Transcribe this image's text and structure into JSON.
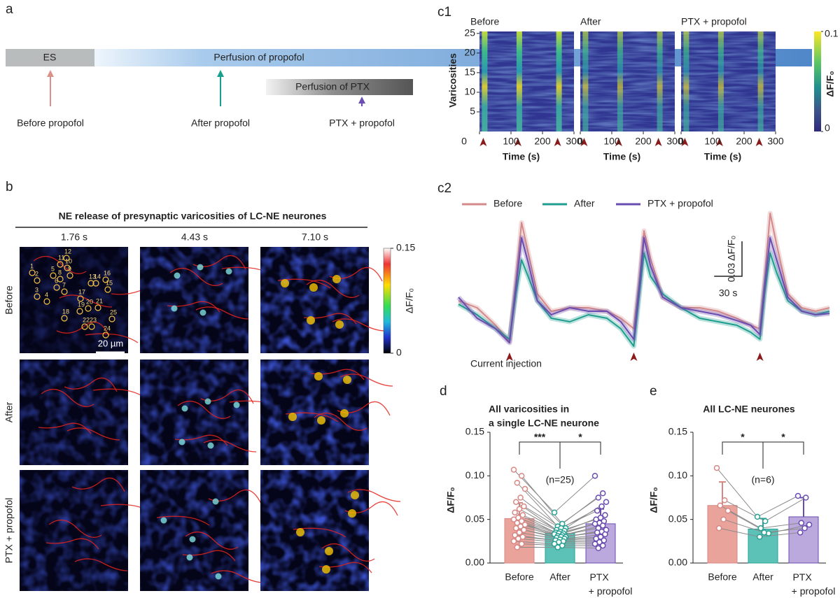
{
  "panel_a": {
    "label": "a",
    "es": "ES",
    "perfusion_propofol": "Perfusion of propofol",
    "perfusion_ptx": "Perfusion of PTX",
    "arrow_labels": [
      "Before propofol",
      "After propofol",
      "PTX + propofol"
    ]
  },
  "panel_b": {
    "label": "b",
    "title": "NE release of presynaptic varicosities of LC-NE neurones",
    "times": [
      "1.76 s",
      "4.43 s",
      "7.10 s"
    ],
    "rows": [
      "Before",
      "After",
      "PTX + propofol"
    ],
    "scale_bar": "20 µm",
    "roi_labels": [
      "1",
      "2",
      "3",
      "4",
      "5",
      "6",
      "7",
      "8",
      "9",
      "10",
      "11",
      "12",
      "13",
      "14",
      "15",
      "16",
      "17",
      "18",
      "19",
      "20",
      "21",
      "22",
      "23",
      "24",
      "25"
    ],
    "colorbar": {
      "label": "ΔF/F₀",
      "ticks": [
        0,
        0.15
      ]
    }
  },
  "panel_c1": {
    "label": "c1",
    "titles": [
      "Before",
      "After",
      "PTX + propofol"
    ],
    "ylabel": "Varicosities",
    "xlabel": "Time (s)",
    "xlim": [
      0,
      300
    ],
    "xticks": [
      0,
      100,
      200,
      300
    ],
    "ylim": [
      0,
      25.5
    ],
    "yticks": [
      5,
      10,
      15,
      20,
      25
    ],
    "markers": [
      12,
      122,
      248
    ],
    "colorbar": {
      "label": "ΔF/F₀",
      "ticks": [
        0,
        0.1
      ]
    }
  },
  "chart_data": [
    {
      "type": "line",
      "label": "c2",
      "annotation": "Current injection",
      "x": [
        0,
        20,
        40,
        55,
        62,
        68,
        75,
        85,
        100,
        120,
        140,
        160,
        175,
        189,
        195,
        200,
        207,
        220,
        240,
        260,
        280,
        300,
        315,
        325,
        330,
        336,
        343,
        355,
        370,
        385,
        400
      ],
      "xlim": [
        0,
        400
      ],
      "ylim": [
        -0.033,
        0.093
      ],
      "markers": [
        55,
        189,
        325
      ],
      "scale_y": {
        "value": 0.03,
        "label": "0.03 ΔF/F₀"
      },
      "scale_x": {
        "value": 30,
        "label": "30 s"
      },
      "series": [
        {
          "name": "Before",
          "color": "#d48a8a",
          "values": [
            0.009,
            0.003,
            -0.012,
            -0.026,
            0.027,
            0.076,
            0.051,
            0.015,
            0,
            0.003,
            0.003,
            0,
            -0.006,
            -0.015,
            0.027,
            0.069,
            0.045,
            0.012,
            0.003,
            0.003,
            0,
            -0.006,
            -0.012,
            -0.015,
            0.027,
            0.084,
            0.057,
            0.015,
            0.003,
            0,
            0.003
          ]
        },
        {
          "name": "After",
          "color": "#1f9e90",
          "values": [
            0.006,
            -0.003,
            -0.015,
            -0.024,
            0.015,
            0.044,
            0.03,
            0.009,
            -0.006,
            -0.009,
            -0.003,
            -0.006,
            -0.015,
            -0.03,
            0.015,
            0.05,
            0.03,
            0.015,
            0.003,
            -0.006,
            -0.009,
            -0.012,
            -0.018,
            -0.024,
            0.015,
            0.05,
            0.033,
            0.009,
            0,
            -0.003,
            0
          ]
        },
        {
          "name": "PTX + propofol",
          "color": "#6a4cb0",
          "values": [
            0.012,
            -0.006,
            -0.015,
            -0.027,
            0.021,
            0.063,
            0.042,
            0.009,
            -0.003,
            0.003,
            0,
            0,
            -0.009,
            -0.024,
            0.021,
            0.063,
            0.039,
            0.012,
            0.003,
            0,
            -0.003,
            -0.008,
            -0.012,
            -0.02,
            0.021,
            0.063,
            0.044,
            0.012,
            0,
            -0.003,
            -0.002
          ]
        }
      ]
    },
    {
      "type": "bar",
      "label": "d",
      "title_lines": [
        "All varicosities in",
        "a single LC-NE neurone"
      ],
      "ylabel": "ΔF/F₀",
      "categories": [
        "Before",
        "After",
        "PTX + propofol"
      ],
      "colors": [
        "#e9a39b",
        "#5cc2b8",
        "#bba9dd"
      ],
      "point_colors": [
        "#d88884",
        "#26a194",
        "#6a4cb0"
      ],
      "values": [
        0.051,
        0.034,
        0.045
      ],
      "errors": [
        0.018,
        0.008,
        0.017
      ],
      "points": [
        [
          0.107,
          0.1,
          0.092,
          0.085,
          0.075,
          0.07,
          0.065,
          0.062,
          0.058,
          0.055,
          0.052,
          0.05,
          0.048,
          0.046,
          0.044,
          0.042,
          0.04,
          0.038,
          0.035,
          0.032,
          0.03,
          0.028,
          0.025,
          0.022,
          0.018
        ],
        [
          0.058,
          0.045,
          0.042,
          0.04,
          0.04,
          0.038,
          0.037,
          0.036,
          0.035,
          0.034,
          0.034,
          0.033,
          0.032,
          0.031,
          0.03,
          0.03,
          0.029,
          0.028,
          0.027,
          0.026,
          0.025,
          0.024,
          0.022,
          0.02,
          0.018
        ],
        [
          0.1,
          0.08,
          0.075,
          0.07,
          0.065,
          0.06,
          0.055,
          0.052,
          0.05,
          0.048,
          0.046,
          0.045,
          0.043,
          0.04,
          0.038,
          0.036,
          0.035,
          0.033,
          0.03,
          0.028,
          0.026,
          0.024,
          0.022,
          0.02,
          0.017
        ]
      ],
      "significance": [
        "***",
        "*"
      ],
      "n_label": "(n=25)",
      "ylim": [
        0,
        0.15
      ],
      "yticks": [
        {
          "value": 0,
          "label": "0.00"
        },
        {
          "value": 0.05,
          "label": "0.05"
        },
        {
          "value": 0.1,
          "label": "0.10"
        },
        {
          "value": 0.15,
          "label": "0.15"
        }
      ]
    },
    {
      "type": "bar",
      "label": "e",
      "title_lines": [
        "All LC-NE neurones"
      ],
      "ylabel": "ΔF/F₀",
      "categories": [
        "Before",
        "After",
        "PTX + propofol"
      ],
      "colors": [
        "#e9a39b",
        "#5cc2b8",
        "#bba9dd"
      ],
      "point_colors": [
        "#d88884",
        "#26a194",
        "#6a4cb0"
      ],
      "values": [
        0.066,
        0.039,
        0.053
      ],
      "errors": [
        0.027,
        0.012,
        0.022
      ],
      "points": [
        [
          0.109,
          0.072,
          0.066,
          0.06,
          0.05,
          0.04
        ],
        [
          0.053,
          0.048,
          0.04,
          0.034,
          0.035,
          0.03
        ],
        [
          0.077,
          0.075,
          0.046,
          0.044,
          0.04,
          0.035
        ]
      ],
      "significance": [
        "*",
        "*"
      ],
      "n_label": "(n=6)",
      "ylim": [
        0,
        0.15
      ],
      "yticks": [
        {
          "value": 0,
          "label": "0.00"
        },
        {
          "value": 0.05,
          "label": "0.05"
        },
        {
          "value": 0.1,
          "label": "0.10"
        },
        {
          "value": 0.15,
          "label": "0.15"
        }
      ]
    }
  ]
}
